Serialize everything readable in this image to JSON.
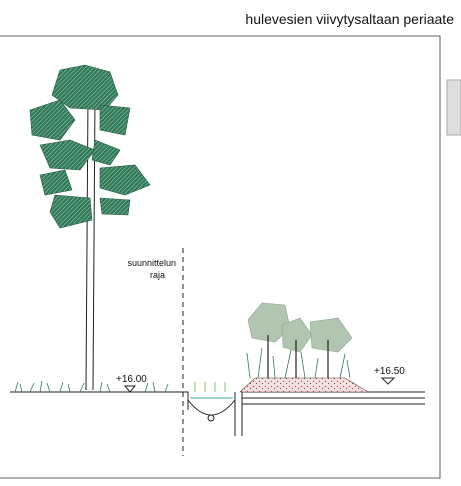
{
  "header": {
    "title": "hulevesien viivytysaltaan periaate"
  },
  "labels": {
    "boundary": [
      "suunnittelun",
      "raja"
    ],
    "level_left": "+16.00",
    "level_right": "+16.50"
  }
}
